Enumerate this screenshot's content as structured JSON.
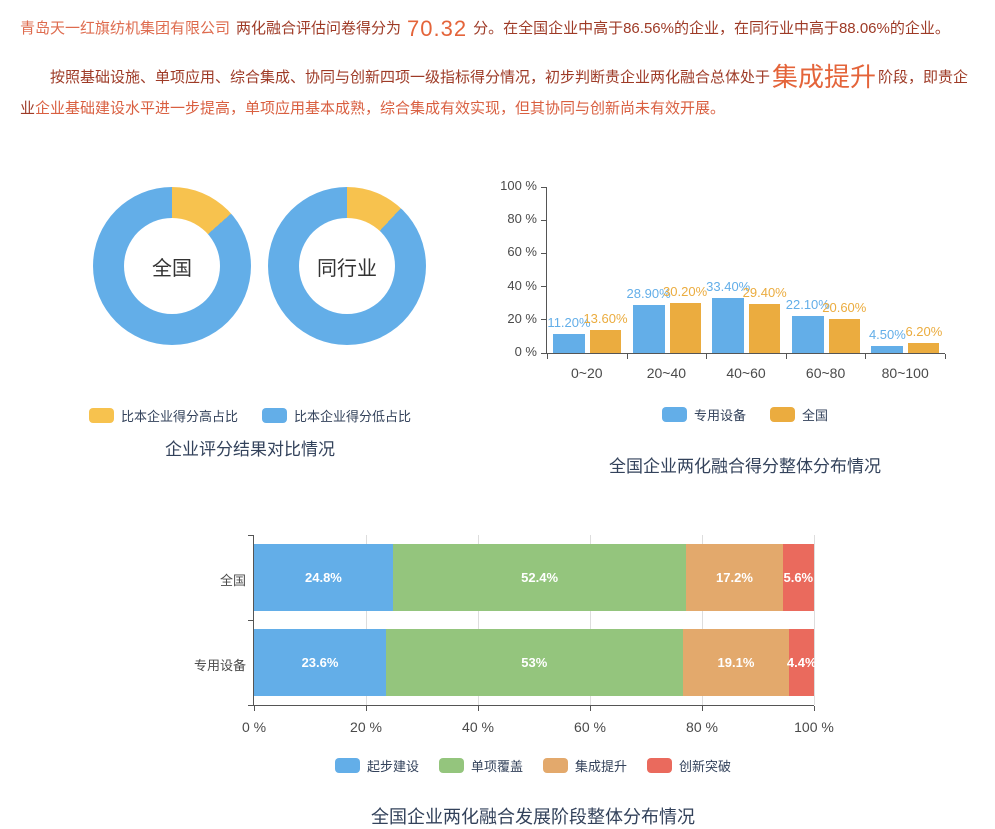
{
  "header": {
    "line1": {
      "company": "青岛天一红旗纺机集团有限公司",
      "mid": "两化融合评估问卷得分为",
      "score": "70.32",
      "tail": "分。在全国企业中高于86.56%的企业，在同行业中高于88.06%的企业。"
    },
    "line2": {
      "lead": "按照基础设施、单项应用、综合集成、协同与创新四项一级指标得分情况，初步判断贵企业两化融合总体处于",
      "stage": "集成提升",
      "mid": "阶段，即贵企业",
      "tail": "企业基础建设水平进一步提高，单项应用基本成熟，综合集成有效实现，但其协同与创新尚未有效开展。"
    }
  },
  "text_colors": {
    "dark": "#9E3A26",
    "orange": "#D95F40",
    "accent": "#E4643A",
    "company": "#DE6B4E",
    "title": "#33425B"
  },
  "chart_data": [
    {
      "type": "pie",
      "subtype": "donut-pair",
      "title": "企业评分结果对比情况",
      "donuts": [
        {
          "label": "全国",
          "higher_pct": 13.44,
          "lower_pct": 86.56
        },
        {
          "label": "同行业",
          "higher_pct": 11.94,
          "lower_pct": 88.06
        }
      ],
      "legend": [
        {
          "label": "比本企业得分高占比",
          "color": "#F7C24E"
        },
        {
          "label": "比本企业得分低占比",
          "color": "#63AEE8"
        }
      ],
      "legend_position": "bottom"
    },
    {
      "type": "bar",
      "title": "全国企业两化融合得分整体分布情况",
      "categories": [
        "0~20",
        "20~40",
        "40~60",
        "60~80",
        "80~100"
      ],
      "series": [
        {
          "name": "专用设备",
          "color": "#63AEE8",
          "values": [
            11.2,
            28.9,
            33.4,
            22.1,
            4.5
          ]
        },
        {
          "name": "全国",
          "color": "#EBAC3F",
          "values": [
            13.6,
            30.2,
            29.4,
            20.6,
            6.2
          ]
        }
      ],
      "xlabel": "",
      "ylabel": "",
      "ylim": [
        0,
        100
      ],
      "yticks": [
        "0 %",
        "20 %",
        "40 %",
        "60 %",
        "80 %",
        "100 %"
      ],
      "grid": false,
      "legend_position": "bottom"
    },
    {
      "type": "bar",
      "subtype": "horizontal-stacked",
      "title": "全国企业两化融合发展阶段整体分布情况",
      "categories": [
        "全国",
        "专用设备"
      ],
      "series": [
        {
          "name": "起步建设",
          "color": "#63AEE8",
          "values": [
            24.8,
            23.6
          ]
        },
        {
          "name": "单项覆盖",
          "color": "#94C57D",
          "values": [
            52.4,
            53
          ]
        },
        {
          "name": "集成提升",
          "color": "#E3A96C",
          "values": [
            17.2,
            19.1
          ]
        },
        {
          "name": "创新突破",
          "color": "#EA6A5D",
          "values": [
            5.6,
            4.4
          ]
        }
      ],
      "xlim": [
        0,
        100
      ],
      "xticks": [
        "0 %",
        "20 %",
        "40 %",
        "60 %",
        "80 %",
        "100 %"
      ],
      "grid": true,
      "legend_position": "bottom"
    }
  ]
}
